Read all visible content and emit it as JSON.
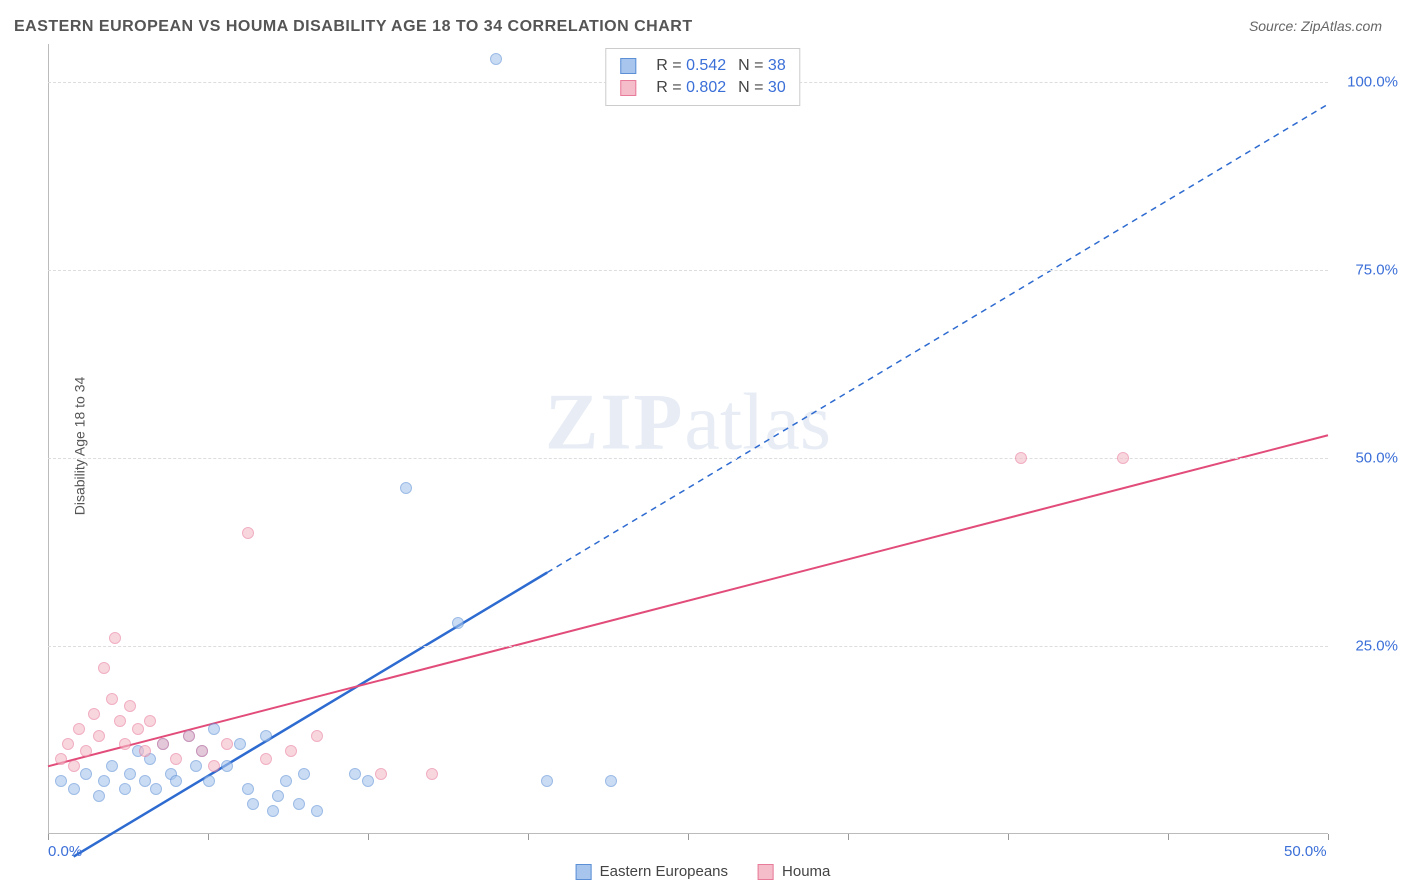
{
  "title": "EASTERN EUROPEAN VS HOUMA DISABILITY AGE 18 TO 34 CORRELATION CHART",
  "source": "Source: ZipAtlas.com",
  "ylabel": "Disability Age 18 to 34",
  "watermark_a": "ZIP",
  "watermark_b": "atlas",
  "chart": {
    "type": "scatter",
    "xlim": [
      0,
      50
    ],
    "ylim": [
      0,
      105
    ],
    "xtick_positions": [
      0,
      6.25,
      12.5,
      18.75,
      25,
      31.25,
      37.5,
      43.75,
      50
    ],
    "xtick_labels_shown": {
      "0": "0.0%",
      "50": "50.0%"
    },
    "ytick_positions": [
      25,
      50,
      75,
      100
    ],
    "ytick_labels": {
      "25": "25.0%",
      "50": "50.0%",
      "75": "75.0%",
      "100": "100.0%"
    },
    "background_color": "#ffffff",
    "grid_color": "#dddddd",
    "axis_color": "#bbbbbb",
    "tick_label_color": "#3b6fd8",
    "title_color": "#555555",
    "title_fontsize": 16,
    "label_fontsize": 14,
    "point_radius": 6,
    "point_opacity": 0.6,
    "series": [
      {
        "name": "Eastern Europeans",
        "fill_color": "#a7c5ed",
        "stroke_color": "#5b8fd6",
        "line_color": "#2e6bd0",
        "line_width": 2.5,
        "dash_extrapolate": true,
        "R_label": "R = ",
        "R": "0.542",
        "N_label": "N = ",
        "N": "38",
        "trend": {
          "x1": 1,
          "y1": -3,
          "x2": 50,
          "y2": 97,
          "solid_until_x": 19.5
        },
        "points": [
          [
            0.5,
            7
          ],
          [
            1,
            6
          ],
          [
            1.5,
            8
          ],
          [
            2,
            5
          ],
          [
            2.2,
            7
          ],
          [
            2.5,
            9
          ],
          [
            3,
            6
          ],
          [
            3.2,
            8
          ],
          [
            3.5,
            11
          ],
          [
            3.8,
            7
          ],
          [
            4,
            10
          ],
          [
            4.2,
            6
          ],
          [
            4.5,
            12
          ],
          [
            4.8,
            8
          ],
          [
            5,
            7
          ],
          [
            5.5,
            13
          ],
          [
            5.8,
            9
          ],
          [
            6,
            11
          ],
          [
            6.3,
            7
          ],
          [
            6.5,
            14
          ],
          [
            7,
            9
          ],
          [
            7.5,
            12
          ],
          [
            7.8,
            6
          ],
          [
            8,
            4
          ],
          [
            8.5,
            13
          ],
          [
            8.8,
            3
          ],
          [
            9,
            5
          ],
          [
            9.3,
            7
          ],
          [
            9.8,
            4
          ],
          [
            10,
            8
          ],
          [
            10.5,
            3
          ],
          [
            12,
            8
          ],
          [
            12.5,
            7
          ],
          [
            14,
            46
          ],
          [
            16,
            28
          ],
          [
            17.5,
            103
          ],
          [
            19.5,
            7
          ],
          [
            22,
            7
          ]
        ]
      },
      {
        "name": "Houma",
        "fill_color": "#f5bcc9",
        "stroke_color": "#e87a9a",
        "line_color": "#e24c7a",
        "line_width": 2,
        "dash_extrapolate": false,
        "R_label": "R = ",
        "R": "0.802",
        "N_label": "N = ",
        "N": "30",
        "trend": {
          "x1": 0,
          "y1": 9,
          "x2": 50,
          "y2": 53,
          "solid_until_x": 50
        },
        "points": [
          [
            0.5,
            10
          ],
          [
            0.8,
            12
          ],
          [
            1,
            9
          ],
          [
            1.2,
            14
          ],
          [
            1.5,
            11
          ],
          [
            1.8,
            16
          ],
          [
            2,
            13
          ],
          [
            2.2,
            22
          ],
          [
            2.5,
            18
          ],
          [
            2.6,
            26
          ],
          [
            2.8,
            15
          ],
          [
            3,
            12
          ],
          [
            3.2,
            17
          ],
          [
            3.5,
            14
          ],
          [
            3.8,
            11
          ],
          [
            4,
            15
          ],
          [
            4.5,
            12
          ],
          [
            5,
            10
          ],
          [
            5.5,
            13
          ],
          [
            6,
            11
          ],
          [
            6.5,
            9
          ],
          [
            7,
            12
          ],
          [
            7.8,
            40
          ],
          [
            8.5,
            10
          ],
          [
            9.5,
            11
          ],
          [
            10.5,
            13
          ],
          [
            13,
            8
          ],
          [
            15,
            8
          ],
          [
            38,
            50
          ],
          [
            42,
            50
          ]
        ]
      }
    ]
  },
  "legend_bottom": [
    {
      "label": "Eastern Europeans",
      "fill": "#a7c5ed",
      "stroke": "#5b8fd6"
    },
    {
      "label": "Houma",
      "fill": "#f5bcc9",
      "stroke": "#e87a9a"
    }
  ]
}
